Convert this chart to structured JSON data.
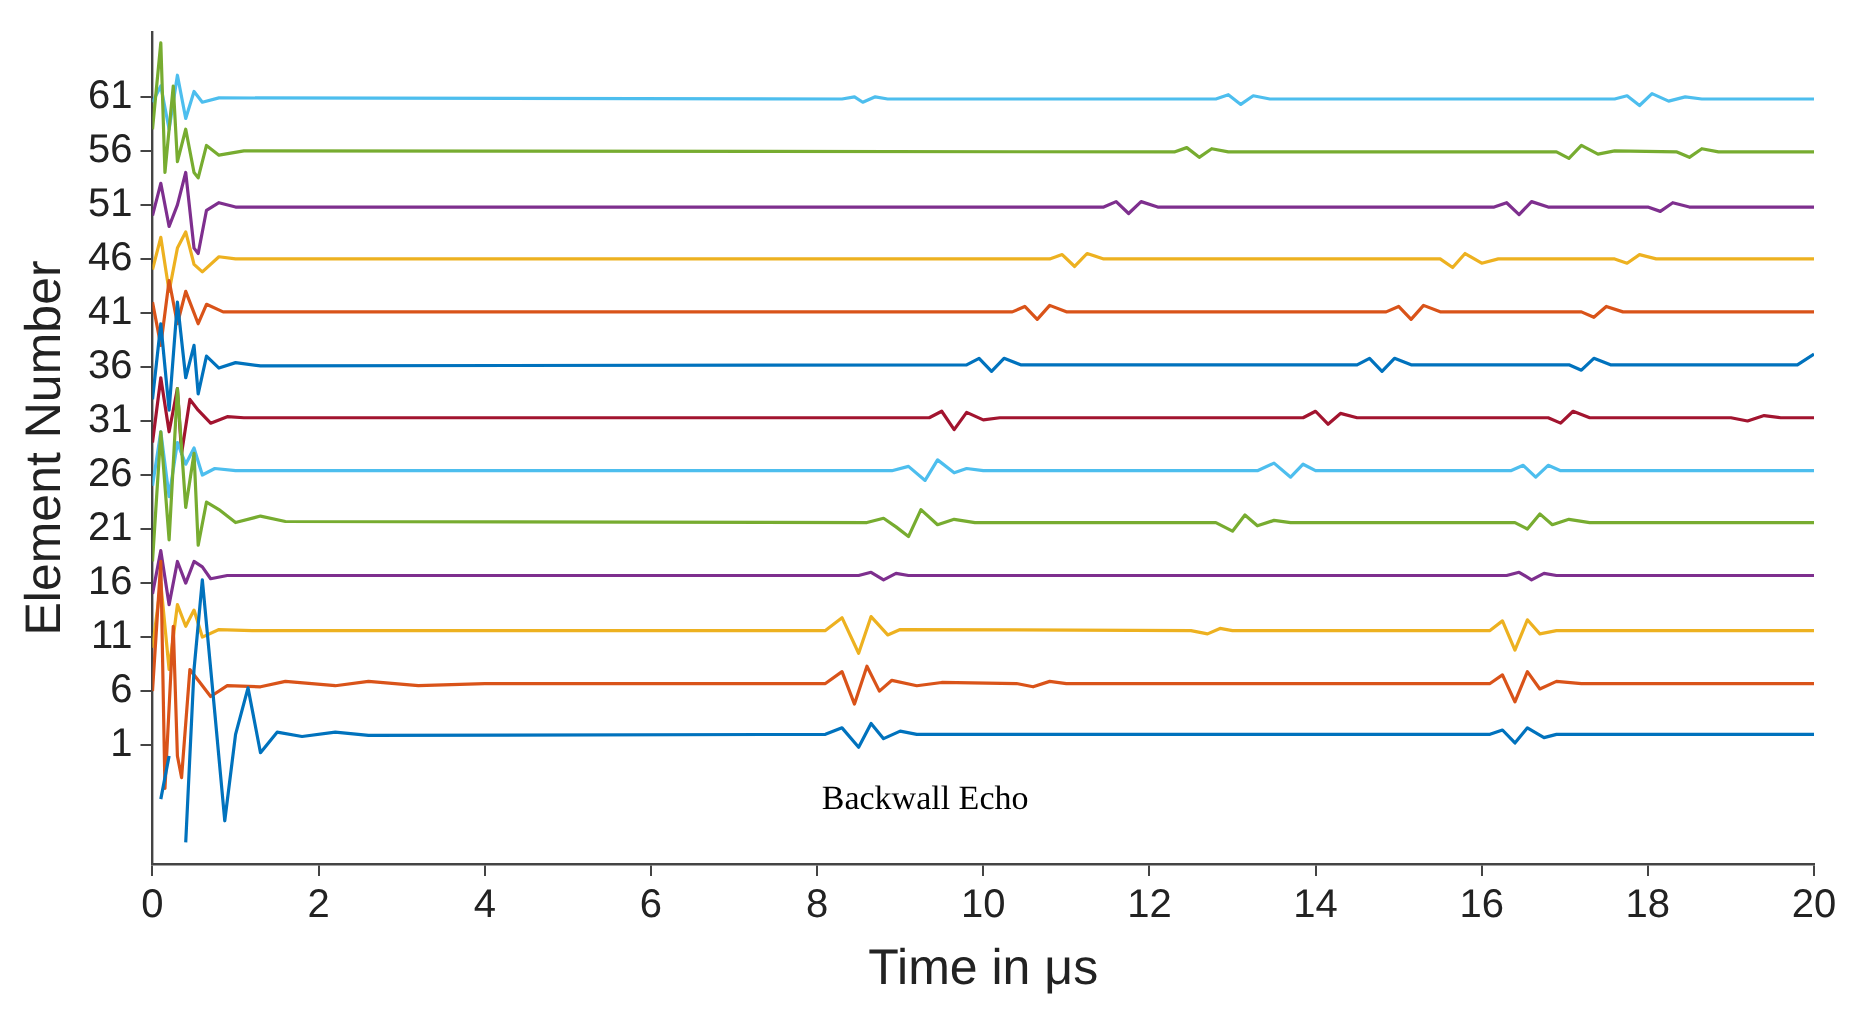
{
  "chart_data": {
    "type": "line",
    "xlabel": "Time in μs",
    "ylabel": "Element Number",
    "xlim": [
      0,
      20
    ],
    "ylim": [
      -10,
      67
    ],
    "xticks": [
      0,
      2,
      4,
      6,
      8,
      10,
      12,
      14,
      16,
      18,
      20
    ],
    "yticks": [
      1,
      6,
      11,
      16,
      21,
      26,
      31,
      36,
      41,
      46,
      51,
      56,
      61
    ],
    "marker": "none",
    "annotations": [
      "Backwall Echo"
    ],
    "series": [
      {
        "color": "#0072bd",
        "x": [
          0.1,
          0.2,
          0.3,
          0.4,
          0.5,
          0.6,
          0.75,
          0.87,
          1.0,
          1.15,
          1.3,
          1.5,
          1.8,
          2.2,
          2.6,
          8.1,
          8.3,
          8.5,
          8.65,
          8.8,
          9.0,
          9.2,
          16.1,
          16.25,
          16.4,
          16.55,
          16.75,
          16.9,
          20
        ],
        "values": [
          -4,
          0,
          null,
          -8,
          8,
          16.3,
          4,
          -6,
          2,
          6.3,
          0.3,
          2.2,
          1.8,
          2.2,
          1.9,
          2.0,
          2.6,
          0.8,
          3.0,
          1.6,
          2.3,
          2.0,
          2.0,
          2.4,
          1.2,
          2.6,
          1.7,
          2.0,
          2.0
        ]
      },
      {
        "color": "#d95319",
        "x": [
          0,
          0.1,
          0.15,
          0.25,
          0.3,
          0.35,
          0.45,
          0.55,
          0.7,
          0.9,
          1.3,
          1.6,
          2.2,
          2.6,
          3.2,
          4,
          8.1,
          8.3,
          8.45,
          8.6,
          8.75,
          8.9,
          9.2,
          9.5,
          10.4,
          10.6,
          10.8,
          11,
          16.1,
          16.25,
          16.4,
          16.55,
          16.7,
          16.9,
          17.2,
          20
        ],
        "values": [
          6,
          18,
          -3,
          12,
          0,
          -2,
          8,
          7,
          5.5,
          6.5,
          6.4,
          6.9,
          6.5,
          6.9,
          6.5,
          6.7,
          6.7,
          7.8,
          4.8,
          8.3,
          6.0,
          7.0,
          6.5,
          6.8,
          6.7,
          6.4,
          6.9,
          6.7,
          6.7,
          7.5,
          5.0,
          7.8,
          6.2,
          6.9,
          6.7,
          6.7
        ]
      },
      {
        "color": "#edb120",
        "x": [
          0,
          0.1,
          0.2,
          0.3,
          0.4,
          0.5,
          0.6,
          0.8,
          1.2,
          8.1,
          8.3,
          8.5,
          8.65,
          8.85,
          9.0,
          12.5,
          12.7,
          12.85,
          13,
          16.1,
          16.25,
          16.4,
          16.55,
          16.7,
          16.9,
          20
        ],
        "values": [
          10,
          16,
          8,
          14,
          12,
          13.5,
          11.0,
          11.7,
          11.6,
          11.6,
          12.8,
          9.5,
          12.9,
          11.2,
          11.7,
          11.6,
          11.3,
          11.8,
          11.6,
          11.6,
          12.5,
          9.8,
          12.6,
          11.3,
          11.6,
          11.6
        ]
      },
      {
        "color": "#7e2f8e",
        "x": [
          0,
          0.1,
          0.2,
          0.3,
          0.4,
          0.5,
          0.6,
          0.7,
          0.9,
          8.5,
          8.65,
          8.8,
          8.95,
          9.1,
          16.3,
          16.45,
          16.6,
          16.75,
          16.9,
          20
        ],
        "values": [
          15,
          19,
          14,
          18,
          16,
          18,
          17.5,
          16.4,
          16.7,
          16.7,
          17.0,
          16.3,
          16.9,
          16.7,
          16.7,
          17.0,
          16.3,
          16.9,
          16.7,
          16.7
        ]
      },
      {
        "color": "#77ac30",
        "x": [
          0,
          0.1,
          0.2,
          0.3,
          0.4,
          0.5,
          0.55,
          0.65,
          0.8,
          1.0,
          1.3,
          1.6,
          8.6,
          8.8,
          8.95,
          9.1,
          9.25,
          9.45,
          9.65,
          9.9,
          12.8,
          13.0,
          13.15,
          13.3,
          13.5,
          13.7,
          16.4,
          16.55,
          16.7,
          16.85,
          17.05,
          17.3,
          20
        ],
        "values": [
          18,
          30,
          20,
          34,
          23,
          28,
          19.5,
          23.5,
          22.8,
          21.6,
          22.2,
          21.7,
          21.6,
          22.0,
          21.2,
          20.3,
          22.8,
          21.4,
          21.9,
          21.6,
          21.6,
          20.8,
          22.3,
          21.3,
          21.8,
          21.6,
          21.6,
          21.0,
          22.4,
          21.4,
          21.9,
          21.6,
          21.6
        ]
      },
      {
        "color": "#4dbeee",
        "x": [
          0,
          0.1,
          0.2,
          0.3,
          0.4,
          0.5,
          0.6,
          0.75,
          1.0,
          8.9,
          9.1,
          9.3,
          9.45,
          9.65,
          9.8,
          10,
          13.3,
          13.5,
          13.7,
          13.85,
          14.0,
          16.35,
          16.5,
          16.65,
          16.8,
          16.95,
          20
        ],
        "values": [
          25,
          30,
          24,
          29,
          27,
          28.5,
          26.0,
          26.6,
          26.4,
          26.4,
          26.8,
          25.5,
          27.4,
          26.2,
          26.6,
          26.4,
          26.4,
          27.1,
          25.8,
          27.0,
          26.4,
          26.4,
          26.9,
          25.8,
          26.9,
          26.4,
          26.4
        ]
      },
      {
        "color": "#a2142f",
        "x": [
          0,
          0.1,
          0.2,
          0.3,
          0.35,
          0.45,
          0.55,
          0.7,
          0.9,
          1.1,
          9.35,
          9.5,
          9.65,
          9.8,
          10.0,
          10.2,
          13.85,
          14.0,
          14.15,
          14.3,
          14.5,
          16.8,
          16.95,
          17.1,
          17.3,
          19.0,
          19.2,
          19.4,
          19.6,
          20
        ],
        "values": [
          29,
          35,
          30,
          34,
          28,
          33,
          32,
          30.8,
          31.4,
          31.3,
          31.3,
          31.9,
          30.2,
          31.8,
          31.1,
          31.3,
          31.3,
          31.9,
          30.7,
          31.7,
          31.3,
          31.3,
          30.8,
          31.9,
          31.3,
          31.3,
          31.0,
          31.5,
          31.3,
          31.3
        ]
      },
      {
        "color": "#0072bd",
        "x": [
          0,
          0.1,
          0.2,
          0.3,
          0.4,
          0.5,
          0.55,
          0.65,
          0.8,
          1.0,
          1.3,
          9.8,
          9.95,
          10.1,
          10.25,
          10.45,
          14.5,
          14.65,
          14.8,
          14.95,
          15.15,
          17.05,
          17.2,
          17.35,
          17.55,
          19.8,
          20
        ],
        "values": [
          33,
          40,
          32,
          42,
          35,
          38,
          33.5,
          37.0,
          35.9,
          36.4,
          36.1,
          36.2,
          36.8,
          35.6,
          36.8,
          36.2,
          36.2,
          36.8,
          35.6,
          36.8,
          36.2,
          36.2,
          35.7,
          36.8,
          36.2,
          36.2,
          37.2
        ]
      },
      {
        "color": "#d95319",
        "x": [
          0,
          0.1,
          0.2,
          0.3,
          0.4,
          0.5,
          0.55,
          0.65,
          0.85,
          10.35,
          10.5,
          10.65,
          10.8,
          11.0,
          14.85,
          15.0,
          15.15,
          15.3,
          15.5,
          17.2,
          17.35,
          17.5,
          17.7,
          20
        ],
        "values": [
          42,
          38,
          44,
          40,
          43,
          41,
          40.0,
          41.8,
          41.1,
          41.1,
          41.6,
          40.4,
          41.7,
          41.1,
          41.1,
          41.6,
          40.4,
          41.7,
          41.1,
          41.1,
          40.6,
          41.6,
          41.1,
          41.1
        ]
      },
      {
        "color": "#edb120",
        "x": [
          0,
          0.1,
          0.2,
          0.3,
          0.4,
          0.5,
          0.6,
          0.8,
          1.0,
          10.8,
          10.95,
          11.1,
          11.25,
          11.45,
          15.5,
          15.65,
          15.8,
          16.0,
          16.2,
          17.6,
          17.75,
          17.9,
          18.1,
          20
        ],
        "values": [
          45,
          48,
          43,
          47,
          48.5,
          45.5,
          44.8,
          46.2,
          46.0,
          46.0,
          46.4,
          45.3,
          46.5,
          46.0,
          46.0,
          45.2,
          46.5,
          45.6,
          46.0,
          46.0,
          45.6,
          46.4,
          46.0,
          46.0
        ]
      },
      {
        "color": "#7e2f8e",
        "x": [
          0,
          0.1,
          0.2,
          0.3,
          0.4,
          0.5,
          0.55,
          0.65,
          0.8,
          1.0,
          11.45,
          11.6,
          11.75,
          11.9,
          12.1,
          16.15,
          16.3,
          16.45,
          16.6,
          16.8,
          18.0,
          18.15,
          18.3,
          18.5,
          20
        ],
        "values": [
          50,
          53,
          49,
          51,
          54,
          47,
          46.5,
          50.5,
          51.2,
          50.8,
          50.8,
          51.3,
          50.2,
          51.3,
          50.8,
          50.8,
          51.2,
          50.1,
          51.3,
          50.8,
          50.8,
          50.4,
          51.2,
          50.8,
          50.8
        ]
      },
      {
        "color": "#77ac30",
        "x": [
          0,
          0.1,
          0.15,
          0.25,
          0.3,
          0.4,
          0.5,
          0.55,
          0.65,
          0.8,
          1.1,
          12.3,
          12.45,
          12.6,
          12.75,
          12.95,
          16.9,
          17.05,
          17.2,
          17.4,
          17.6,
          18.35,
          18.5,
          18.65,
          18.85,
          20
        ],
        "values": [
          58,
          66,
          54,
          62,
          55,
          58,
          54,
          53.5,
          56.5,
          55.6,
          56.0,
          55.9,
          56.3,
          55.4,
          56.2,
          55.9,
          55.9,
          55.3,
          56.5,
          55.7,
          56.0,
          55.9,
          55.4,
          56.2,
          55.9,
          55.9
        ]
      },
      {
        "color": "#4dbeee",
        "x": [
          0,
          0.1,
          0.2,
          0.3,
          0.4,
          0.5,
          0.6,
          0.8,
          8.3,
          8.45,
          8.55,
          8.7,
          8.85,
          12.8,
          12.95,
          13.1,
          13.25,
          13.45,
          17.6,
          17.75,
          17.9,
          18.05,
          18.25,
          18.45,
          18.65,
          20
        ],
        "values": [
          60.5,
          62,
          58,
          63,
          59,
          61.5,
          60.5,
          60.9,
          60.8,
          61.0,
          60.5,
          61.0,
          60.8,
          60.8,
          61.2,
          60.3,
          61.1,
          60.8,
          60.8,
          61.1,
          60.2,
          61.3,
          60.6,
          61.0,
          60.8,
          60.8
        ]
      }
    ]
  }
}
